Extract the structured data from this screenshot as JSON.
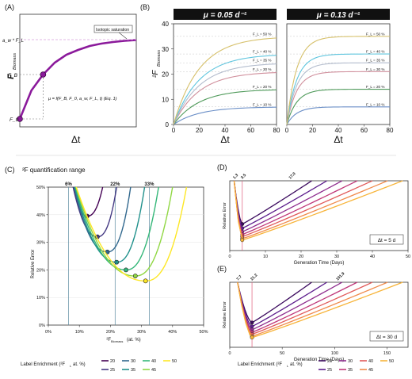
{
  "colors": {
    "purple": "#8b1a9b",
    "mu_header_bg": "#111111",
    "enrich": [
      "#440154",
      "#443983",
      "#31688e",
      "#21918c",
      "#35b779",
      "#90d743",
      "#fde725"
    ],
    "lowpanel": [
      "#3b0a5e",
      "#5c1d8c",
      "#8e2d8e",
      "#c0387a",
      "#e15a5a",
      "#f08a4b",
      "#f7b43a"
    ],
    "curveB": [
      "#6b8fc7",
      "#4f9a5a",
      "#d08f9c",
      "#b3bccd",
      "#5fc5de",
      "#d6c06a"
    ]
  },
  "chart_data": [
    {
      "panel": "(A)",
      "type": "line",
      "ylabel": "F",
      "ylabel_sub": "Biomass",
      "xlabel": "Δt",
      "y_marks": [
        "a_w * F_L",
        "F_B",
        "F_0"
      ],
      "annotation": "Isotopic saturation",
      "equation": "μ = f(F_B, F_0, a_w, F_L, t)     (Eq. 1)",
      "curve": [
        [
          0,
          0.0
        ],
        [
          0.1,
          0.36
        ],
        [
          0.2,
          0.56
        ],
        [
          0.3,
          0.71
        ],
        [
          0.4,
          0.81
        ],
        [
          0.5,
          0.87
        ],
        [
          0.6,
          0.92
        ],
        [
          0.7,
          0.95
        ],
        [
          0.8,
          0.97
        ],
        [
          0.9,
          0.985
        ],
        [
          1.0,
          0.995
        ]
      ],
      "points": [
        [
          0.0,
          0.0
        ],
        [
          0.2,
          0.56
        ]
      ]
    },
    {
      "panel": "(B)",
      "type": "line",
      "ylabel": "²F",
      "ylabel_sub": "Biomass",
      "xlabel": "Δt",
      "xlim": [
        0,
        80
      ],
      "ylim": [
        0,
        40
      ],
      "xticks": [
        0,
        20,
        40,
        60,
        80
      ],
      "yticks": [
        0,
        10,
        20,
        30,
        40
      ],
      "subplots": [
        {
          "title": "μ = 0.05 d⁻¹",
          "rate": 0.05,
          "series": [
            {
              "name": "F_L = 10 %",
              "plateau": 7.0
            },
            {
              "name": "F_L = 20 %",
              "plateau": 14.0
            },
            {
              "name": "F_L = 30 %",
              "plateau": 21.0
            },
            {
              "name": "F_L = 35 %",
              "plateau": 24.5
            },
            {
              "name": "F_L = 40 %",
              "plateau": 28.0
            },
            {
              "name": "F_L = 50 %",
              "plateau": 35.0
            }
          ]
        },
        {
          "title": "μ = 0.13 d⁻¹",
          "rate": 0.13,
          "series": [
            {
              "name": "F_L = 10 %",
              "plateau": 7.0
            },
            {
              "name": "F_L = 20 %",
              "plateau": 14.0
            },
            {
              "name": "F_L = 30 %",
              "plateau": 21.0
            },
            {
              "name": "F_L = 35 %",
              "plateau": 24.5
            },
            {
              "name": "F_L = 40 %",
              "plateau": 28.0
            },
            {
              "name": "F_L = 50 %",
              "plateau": 35.0
            }
          ]
        }
      ]
    },
    {
      "panel": "(C)",
      "type": "line",
      "title": "²F quantification range",
      "xlabel": "²F",
      "xlabel_sub": "Biomass",
      "xlabel_unit": "(at. %)",
      "ylabel": "Relative Error",
      "xlim": [
        0,
        50
      ],
      "ylim": [
        0,
        50
      ],
      "xticks": [
        "0%",
        "10%",
        "20%",
        "30%",
        "40%",
        "50%"
      ],
      "yticks": [
        "0%",
        "10%",
        "20%",
        "30%",
        "40%",
        "50%"
      ],
      "range_marks": [
        {
          "label": "6%",
          "x": 6.5
        },
        {
          "label": "22%",
          "x": 21.5
        },
        {
          "label": "33%",
          "x": 32.5
        }
      ],
      "series": [
        {
          "name": "20",
          "minimum": [
            12.5,
            39.5
          ],
          "start": 8.0,
          "end": 17.5
        },
        {
          "name": "25",
          "minimum": [
            15.8,
            32.0
          ],
          "start": 8.0,
          "end": 22.0
        },
        {
          "name": "30",
          "minimum": [
            19.0,
            26.5
          ],
          "start": 8.3,
          "end": 26.5
        },
        {
          "name": "35",
          "minimum": [
            22.0,
            22.8
          ],
          "start": 8.5,
          "end": 31.0
        },
        {
          "name": "40",
          "minimum": [
            25.0,
            20.0
          ],
          "start": 8.7,
          "end": 35.5
        },
        {
          "name": "45",
          "minimum": [
            28.0,
            17.8
          ],
          "start": 8.9,
          "end": 40.0
        },
        {
          "name": "50",
          "minimum": [
            31.3,
            16.0
          ],
          "start": 9.0,
          "end": 44.5
        }
      ]
    },
    {
      "panel": "(D)",
      "type": "line",
      "xlabel": "Generation Time (Days)",
      "ylabel": "Relative Error",
      "xlim": [
        0,
        50
      ],
      "xticks": [
        0,
        10,
        20,
        30,
        40,
        50
      ],
      "annotation": "Δt = 5 d",
      "top_marks": [
        "1.3",
        "3.5",
        "17.0"
      ],
      "minimum_x": 3.5,
      "minimum_y": [
        0.38,
        0.32,
        0.27,
        0.23,
        0.2,
        0.17,
        0.15
      ]
    },
    {
      "panel": "(E)",
      "type": "line",
      "xlabel": "Generation Time (Days)",
      "ylabel": "Relative Error",
      "xlim": [
        0,
        170
      ],
      "xticks": [
        0,
        50,
        100,
        150
      ],
      "annotation": "Δt = 30 d",
      "top_marks": [
        "7.7",
        "21.2",
        "101.9"
      ],
      "minimum_x": 21.2,
      "minimum_y": [
        0.38,
        0.32,
        0.27,
        0.23,
        0.2,
        0.17,
        0.15
      ]
    }
  ],
  "legend": {
    "title": "Label Enrichment (²F",
    "title_sub": "L",
    "title_tail": " at. %)",
    "items": [
      "20",
      "25",
      "30",
      "35",
      "40",
      "45",
      "50"
    ]
  }
}
